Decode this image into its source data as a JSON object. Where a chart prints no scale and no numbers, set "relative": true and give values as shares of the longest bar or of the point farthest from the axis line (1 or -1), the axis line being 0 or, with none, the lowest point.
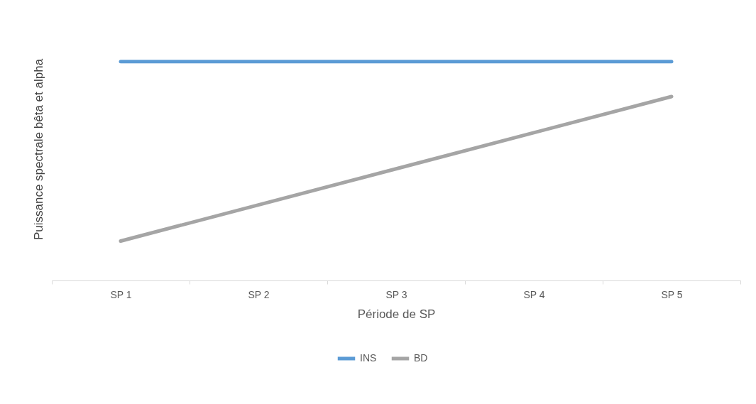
{
  "chart_data": {
    "type": "line",
    "relative": true,
    "xlabel": "Période de SP",
    "ylabel": "Puissance spectrale bêta et alpha",
    "categories": [
      "SP 1",
      "SP 2",
      "SP 3",
      "SP 4",
      "SP 5"
    ],
    "series": [
      {
        "name": "INS",
        "color": "#5b9bd5",
        "values": [
          1,
          1,
          1,
          1,
          1
        ]
      },
      {
        "name": "BD",
        "color": "#a5a5a5",
        "values": [
          0.18,
          0.345,
          0.51,
          0.675,
          0.84
        ]
      }
    ],
    "legend": "bottom",
    "grid": false,
    "marker": "none",
    "line_style": "solid"
  }
}
